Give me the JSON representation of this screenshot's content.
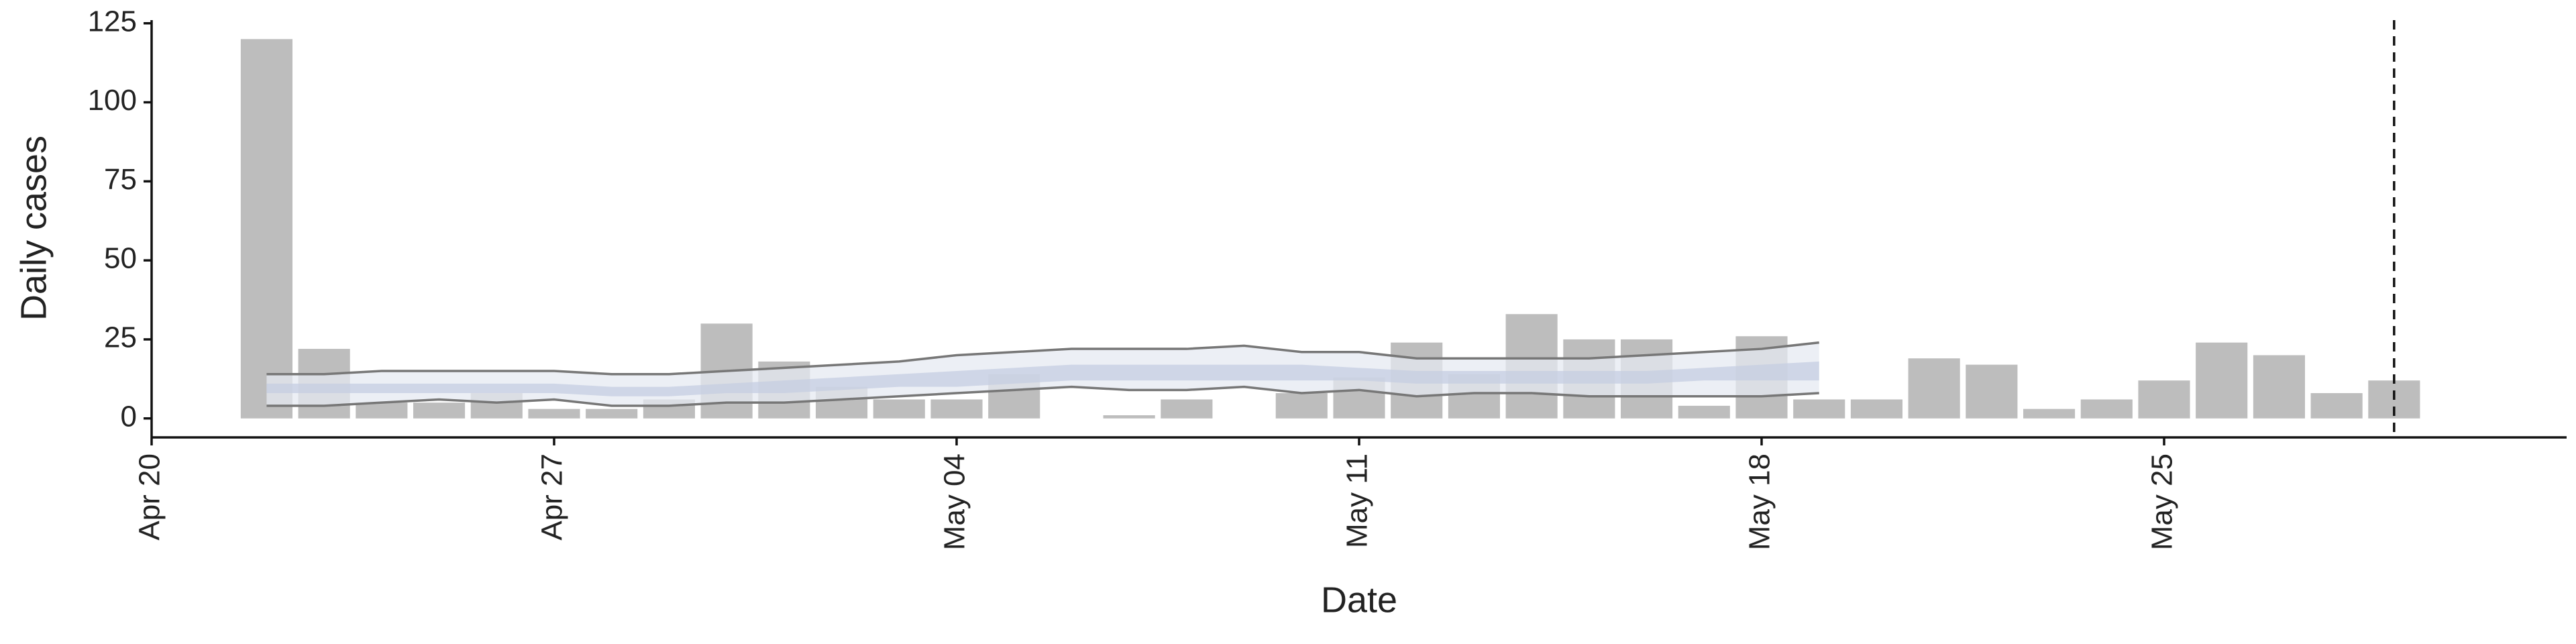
{
  "chart_data": {
    "type": "bar",
    "xlabel": "Date",
    "ylabel": "Daily cases",
    "x": [
      "Apr 22",
      "Apr 23",
      "Apr 24",
      "Apr 25",
      "Apr 26",
      "Apr 27",
      "Apr 28",
      "Apr 29",
      "Apr 30",
      "May 01",
      "May 02",
      "May 03",
      "May 04",
      "May 05",
      "May 06",
      "May 07",
      "May 08",
      "May 09",
      "May 10",
      "May 11",
      "May 12",
      "May 13",
      "May 14",
      "May 15",
      "May 16",
      "May 17",
      "May 18",
      "May 19",
      "May 20",
      "May 21",
      "May 22",
      "May 23",
      "May 24",
      "May 25",
      "May 26",
      "May 27",
      "May 28",
      "May 29"
    ],
    "values": [
      120,
      22,
      5,
      5,
      8,
      3,
      3,
      6,
      30,
      18,
      10,
      6,
      6,
      14,
      0,
      1,
      6,
      0,
      8,
      13,
      24,
      14,
      33,
      25,
      25,
      4,
      26,
      6,
      6,
      19,
      17,
      3,
      6,
      12,
      24,
      20,
      8,
      12
    ],
    "color": "#bdbdbd",
    "band_x": [
      "Apr 22",
      "Apr 23",
      "Apr 24",
      "Apr 25",
      "Apr 26",
      "Apr 27",
      "Apr 28",
      "Apr 29",
      "Apr 30",
      "May 01",
      "May 02",
      "May 03",
      "May 04",
      "May 05",
      "May 06",
      "May 07",
      "May 08",
      "May 09",
      "May 10",
      "May 11",
      "May 12",
      "May 13",
      "May 14",
      "May 15",
      "May 16",
      "May 17",
      "May 18",
      "May 19"
    ],
    "bands": [
      {
        "color": "#e6e9f1",
        "line_color": "#777777",
        "lower": [
          4,
          4,
          5,
          6,
          5,
          6,
          4,
          4,
          5,
          5,
          6,
          7,
          8,
          9,
          10,
          9,
          9,
          10,
          8,
          9,
          7,
          8,
          8,
          7,
          7,
          7,
          7,
          8
        ],
        "upper": [
          14,
          14,
          15,
          15,
          15,
          15,
          14,
          14,
          15,
          16,
          17,
          18,
          20,
          21,
          22,
          22,
          22,
          23,
          21,
          21,
          19,
          19,
          19,
          19,
          20,
          21,
          22,
          24
        ]
      },
      {
        "color": "#c6cee1",
        "lower": [
          8,
          8,
          8,
          8,
          8,
          8,
          7,
          7,
          8,
          8,
          9,
          10,
          10,
          11,
          12,
          12,
          12,
          12,
          12,
          12,
          11,
          11,
          11,
          11,
          11,
          12,
          12,
          12
        ],
        "upper": [
          11,
          11,
          11,
          11,
          11,
          11,
          10,
          10,
          11,
          12,
          13,
          14,
          15,
          16,
          17,
          17,
          17,
          17,
          17,
          16,
          15,
          15,
          15,
          15,
          15,
          16,
          17,
          18
        ]
      }
    ],
    "vline": "May 29",
    "xlim": [
      "Apr 20",
      "Jun 01"
    ],
    "xticks": [
      "Apr 20",
      "Apr 27",
      "May 04",
      "May 11",
      "May 18",
      "May 25"
    ],
    "ylim": [
      -6,
      126
    ],
    "yticks": [
      0,
      25,
      50,
      75,
      100,
      125
    ]
  }
}
